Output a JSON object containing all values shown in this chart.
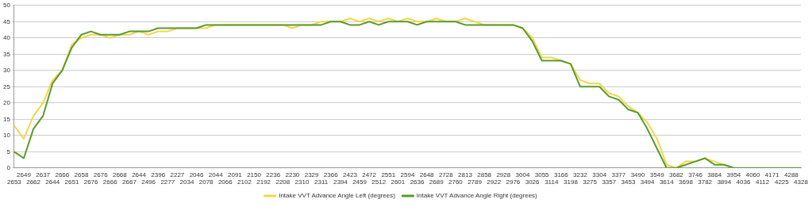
{
  "chart_data": {
    "type": "line",
    "categories": [
      "2653",
      "2649",
      "2662",
      "2637",
      "2644",
      "2666",
      "2651",
      "2658",
      "2676",
      "2676",
      "2666",
      "2668",
      "2667",
      "2644",
      "2496",
      "2396",
      "2277",
      "2227",
      "2034",
      "2046",
      "2078",
      "2044",
      "2066",
      "2091",
      "2102",
      "2150",
      "2192",
      "2236",
      "2208",
      "2230",
      "2310",
      "2329",
      "2311",
      "2366",
      "2394",
      "2423",
      "2459",
      "2472",
      "2512",
      "2551",
      "2601",
      "2594",
      "2636",
      "2648",
      "2689",
      "2728",
      "2760",
      "2813",
      "2789",
      "2858",
      "2922",
      "2928",
      "2976",
      "3004",
      "3026",
      "3055",
      "3114",
      "3166",
      "3198",
      "3232",
      "3275",
      "3304",
      "3357",
      "3377",
      "3453",
      "3490",
      "3494",
      "3549",
      "3614",
      "3682",
      "3698",
      "3746",
      "3782",
      "3864",
      "3894",
      "3954",
      "4036",
      "4060",
      "4112",
      "4171",
      "4225",
      "4288",
      "4328"
    ],
    "series": [
      {
        "name": "Intake VVT Advance Angle Left (degrees)",
        "color": "#f2d64b",
        "values": [
          13,
          9,
          16,
          20,
          27,
          30,
          38,
          40,
          41,
          41,
          40,
          41,
          41,
          42,
          41,
          42,
          42,
          43,
          43,
          43,
          43,
          44,
          44,
          44,
          44,
          44,
          44,
          44,
          44,
          43,
          44,
          44,
          45,
          45,
          45,
          46,
          45,
          46,
          45,
          46,
          45,
          46,
          45,
          45,
          46,
          45,
          45,
          46,
          45,
          44,
          44,
          44,
          44,
          43,
          40,
          34,
          34,
          33,
          32,
          27,
          26,
          26,
          23,
          22,
          19,
          17,
          14,
          9,
          1,
          0,
          2,
          2,
          3,
          2,
          1,
          0,
          null,
          null,
          null,
          null,
          null,
          null,
          null
        ]
      },
      {
        "name": "Intake VVT Advance Angle Right (degrees)",
        "color": "#5b9a2c",
        "values": [
          5,
          3,
          12,
          16,
          26,
          30,
          37,
          41,
          42,
          41,
          41,
          41,
          42,
          42,
          42,
          43,
          43,
          43,
          43,
          43,
          44,
          44,
          44,
          44,
          44,
          44,
          44,
          44,
          44,
          44,
          44,
          44,
          44,
          45,
          45,
          44,
          44,
          45,
          44,
          45,
          45,
          45,
          44,
          45,
          45,
          45,
          45,
          44,
          44,
          44,
          44,
          44,
          44,
          43,
          39,
          33,
          33,
          33,
          32,
          25,
          25,
          25,
          22,
          21,
          18,
          17,
          12,
          6,
          0,
          0,
          1,
          2,
          3,
          1,
          1,
          0,
          0,
          0,
          0,
          0,
          0,
          0,
          0
        ]
      }
    ],
    "ylim": [
      0,
      50
    ],
    "yticks": [
      0,
      5,
      10,
      15,
      20,
      25,
      30,
      35,
      40,
      45,
      50
    ],
    "grid": "y",
    "legend": "bottom",
    "marker": "none",
    "line_style": "solid"
  }
}
